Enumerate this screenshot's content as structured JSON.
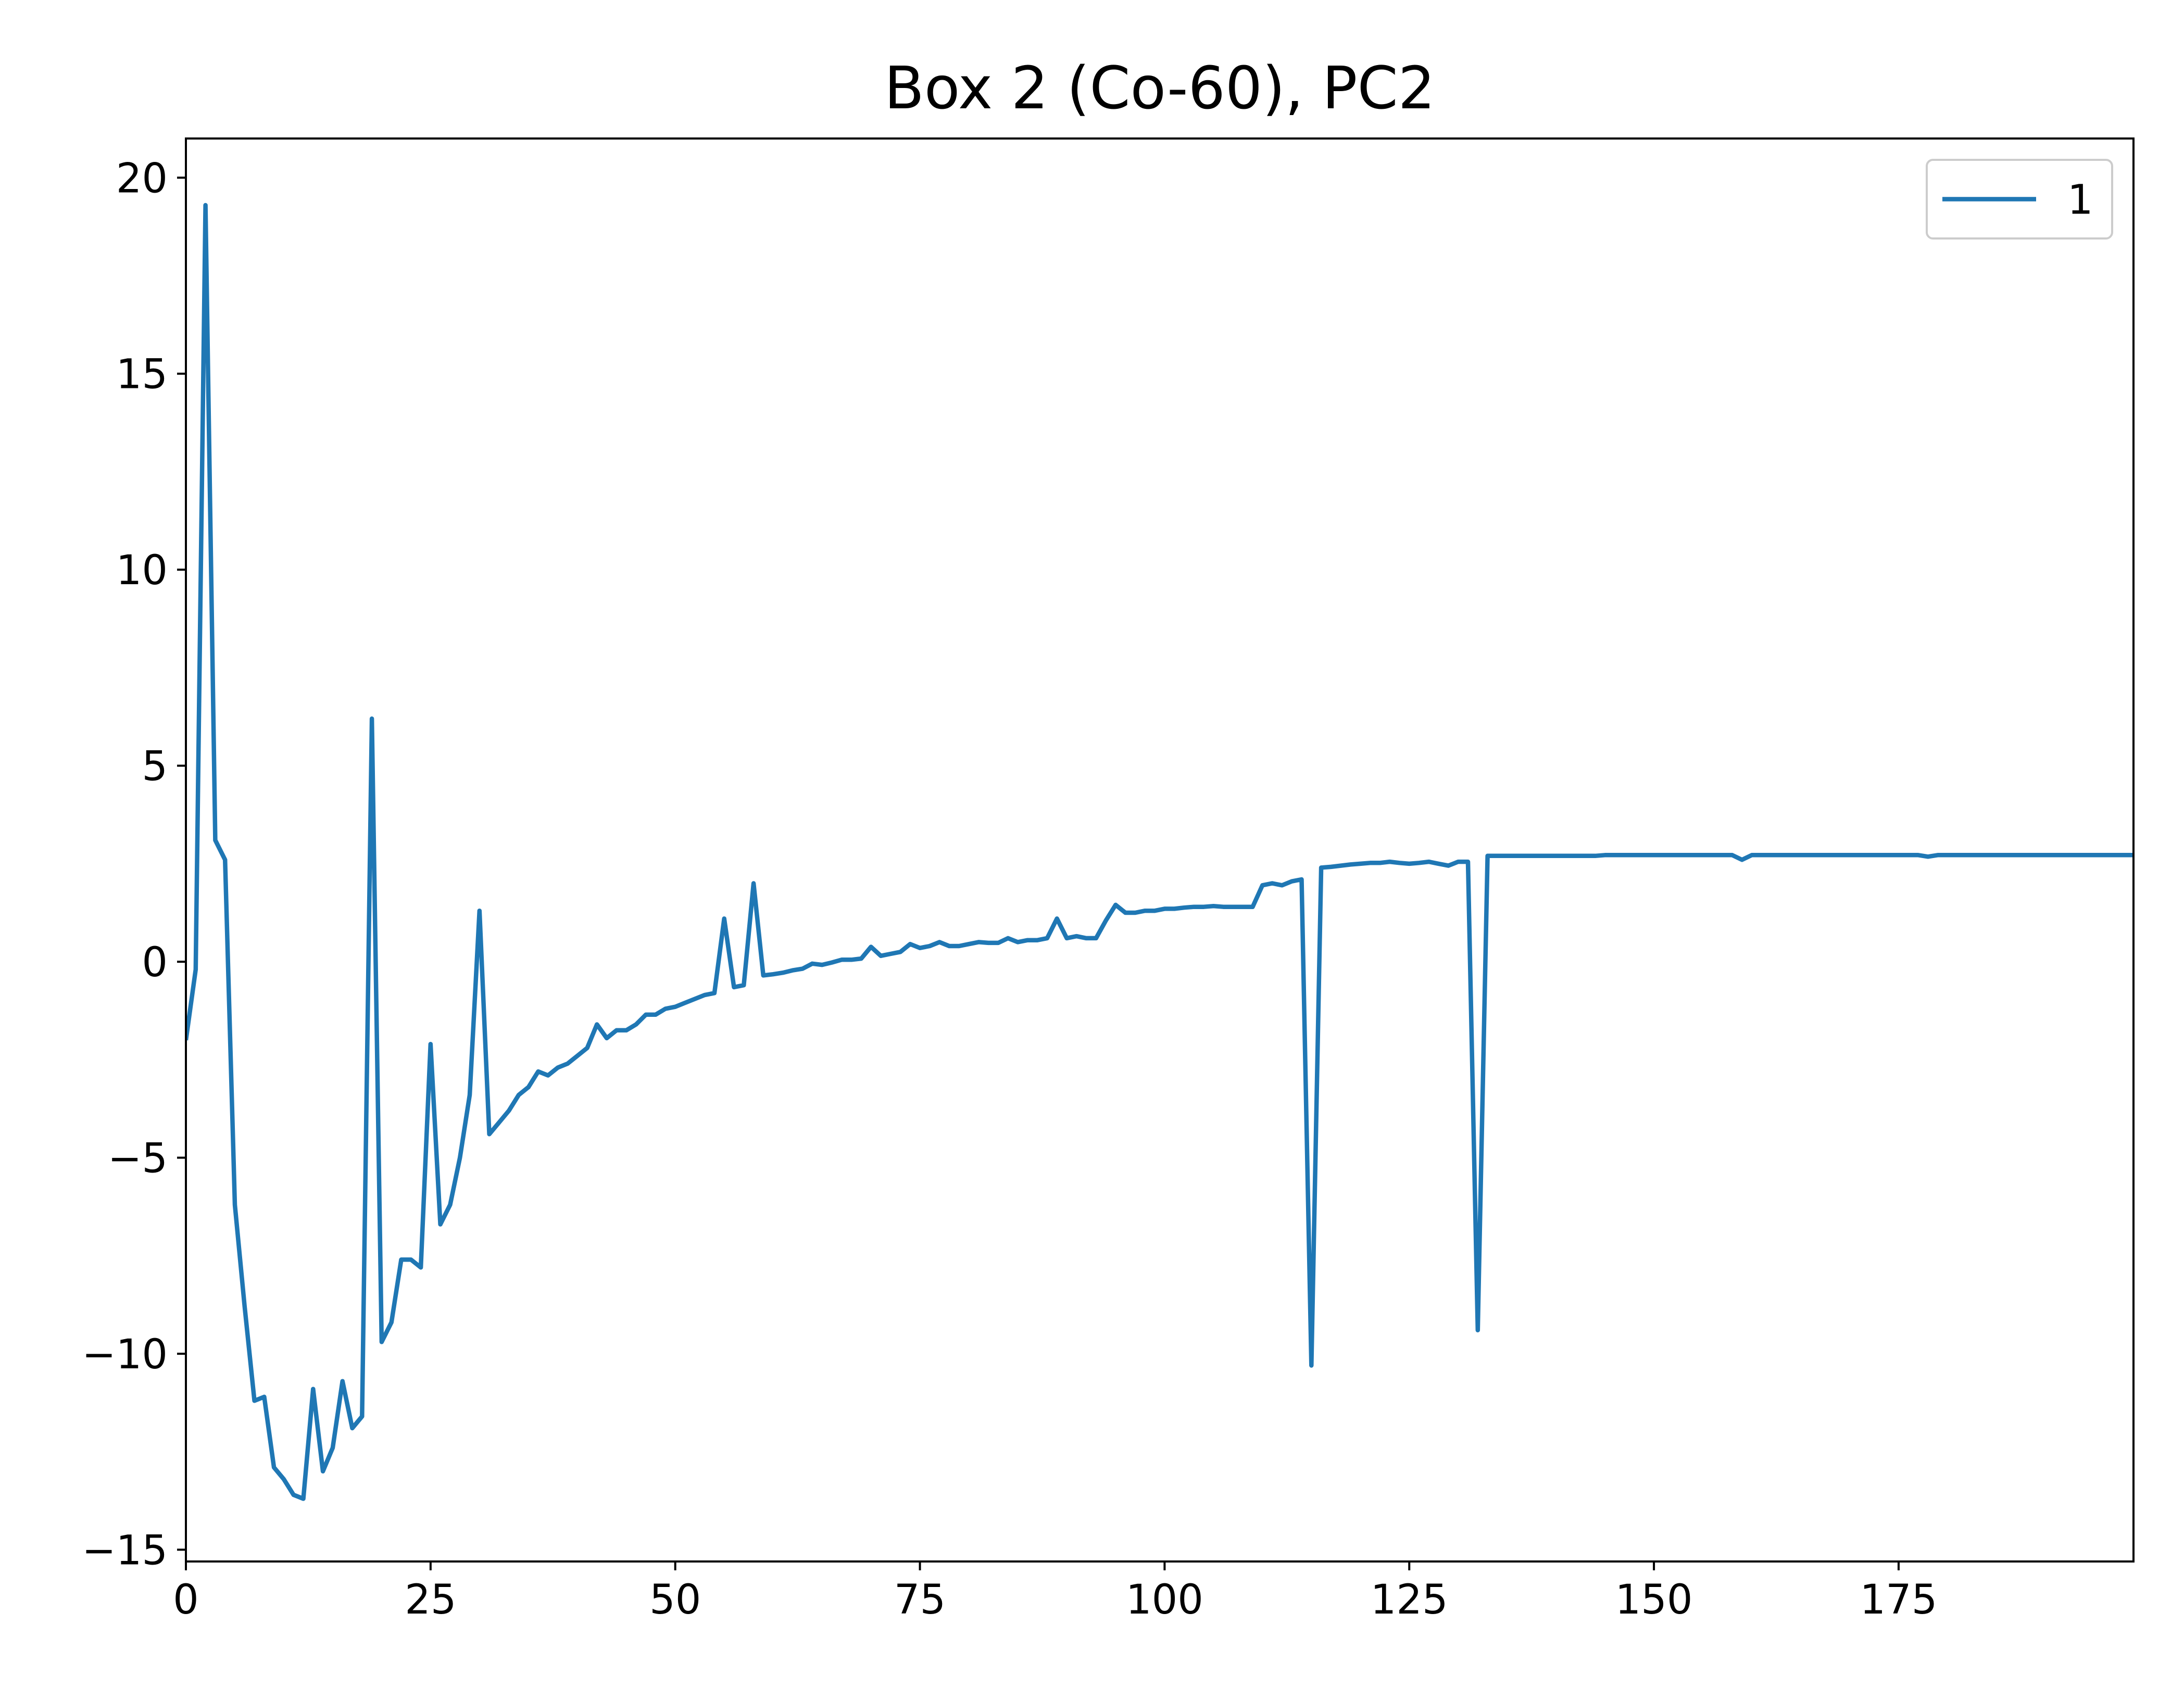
{
  "chart_data": {
    "type": "line",
    "title": "Box 2 (Co-60), PC2",
    "xlabel": "",
    "ylabel": "",
    "xlim": [
      0,
      199
    ],
    "ylim": [
      -15.3,
      21.0
    ],
    "xticks": [
      0,
      25,
      50,
      75,
      100,
      125,
      150,
      175
    ],
    "xtick_labels": [
      "0",
      "25",
      "50",
      "75",
      "100",
      "125",
      "150",
      "175"
    ],
    "yticks": [
      20,
      15,
      10,
      5,
      0,
      -5,
      -10,
      -15
    ],
    "ytick_labels": [
      "20",
      "15",
      "10",
      "5",
      "0",
      "−5",
      "−10",
      "−15"
    ],
    "grid": false,
    "legend_position": "top-right",
    "series": [
      {
        "name": "1",
        "color": "#1f77b4",
        "x": [
          0,
          1,
          2,
          3,
          4,
          5,
          6,
          7,
          8,
          9,
          10,
          11,
          12,
          13,
          14,
          15,
          16,
          17,
          18,
          19,
          20,
          21,
          22,
          23,
          24,
          25,
          26,
          27,
          28,
          29,
          30,
          31,
          32,
          33,
          34,
          35,
          36,
          37,
          38,
          39,
          40,
          41,
          42,
          43,
          44,
          45,
          46,
          47,
          48,
          49,
          50,
          51,
          52,
          53,
          54,
          55,
          56,
          57,
          58,
          59,
          60,
          61,
          62,
          63,
          64,
          65,
          66,
          67,
          68,
          69,
          70,
          71,
          72,
          73,
          74,
          75,
          76,
          77,
          78,
          79,
          80,
          81,
          82,
          83,
          84,
          85,
          86,
          87,
          88,
          89,
          90,
          91,
          92,
          93,
          94,
          95,
          96,
          97,
          98,
          99,
          100,
          101,
          102,
          103,
          104,
          105,
          106,
          107,
          108,
          109,
          110,
          111,
          112,
          113,
          114,
          115,
          116,
          117,
          118,
          119,
          120,
          121,
          122,
          123,
          124,
          125,
          126,
          127,
          128,
          129,
          130,
          131,
          132,
          133,
          134,
          135,
          136,
          137,
          138,
          139,
          140,
          141,
          142,
          143,
          144,
          145,
          146,
          147,
          148,
          149,
          150,
          151,
          152,
          153,
          154,
          155,
          156,
          157,
          158,
          159,
          160,
          161,
          162,
          163,
          164,
          165,
          166,
          167,
          168,
          169,
          170,
          171,
          172,
          173,
          174,
          175,
          176,
          177,
          178,
          179,
          180,
          181,
          182,
          183,
          184,
          185,
          186,
          187,
          188,
          189,
          190,
          191,
          192,
          193,
          194,
          195,
          196,
          197,
          198,
          199
        ],
        "values": [
          -2.0,
          -0.2,
          19.3,
          3.1,
          2.6,
          -6.2,
          -8.8,
          -11.2,
          -11.1,
          -12.9,
          -13.2,
          -13.6,
          -13.7,
          -10.9,
          -13.0,
          -12.4,
          -10.7,
          -11.9,
          -11.6,
          6.2,
          -9.7,
          -9.2,
          -7.6,
          -7.6,
          -7.8,
          -2.1,
          -6.7,
          -6.2,
          -5.0,
          -3.4,
          1.3,
          -4.4,
          -4.1,
          -3.8,
          -3.4,
          -3.2,
          -2.8,
          -2.9,
          -2.7,
          -2.6,
          -2.4,
          -2.2,
          -1.6,
          -1.95,
          -1.75,
          -1.75,
          -1.6,
          -1.35,
          -1.35,
          -1.2,
          -1.15,
          -1.05,
          -0.95,
          -0.85,
          -0.8,
          1.1,
          -0.65,
          -0.6,
          2.0,
          -0.35,
          -0.32,
          -0.28,
          -0.22,
          -0.18,
          -0.05,
          -0.08,
          -0.02,
          0.05,
          0.05,
          0.08,
          0.38,
          0.15,
          0.2,
          0.25,
          0.45,
          0.35,
          0.4,
          0.5,
          0.4,
          0.4,
          0.45,
          0.5,
          0.48,
          0.48,
          0.6,
          0.5,
          0.55,
          0.55,
          0.6,
          1.1,
          0.6,
          0.65,
          0.6,
          0.6,
          1.05,
          1.45,
          1.25,
          1.25,
          1.3,
          1.3,
          1.35,
          1.35,
          1.38,
          1.4,
          1.4,
          1.42,
          1.4,
          1.4,
          1.4,
          1.4,
          1.95,
          2.0,
          1.95,
          2.05,
          2.1,
          -10.3,
          2.4,
          2.42,
          2.45,
          2.48,
          2.5,
          2.52,
          2.52,
          2.55,
          2.52,
          2.5,
          2.52,
          2.55,
          2.5,
          2.45,
          2.55,
          2.55,
          -9.4,
          2.7,
          2.7,
          2.7,
          2.7,
          2.7,
          2.7,
          2.7,
          2.7,
          2.7,
          2.7,
          2.7,
          2.7,
          2.72,
          2.72,
          2.72,
          2.72,
          2.72,
          2.72,
          2.72,
          2.72,
          2.72,
          2.72,
          2.72,
          2.72,
          2.72,
          2.72,
          2.6,
          2.72,
          2.72,
          2.72,
          2.72,
          2.72,
          2.72,
          2.72,
          2.72,
          2.72,
          2.72,
          2.72,
          2.72,
          2.72,
          2.72,
          2.72,
          2.72,
          2.72,
          2.72,
          2.68,
          2.72,
          2.72,
          2.72,
          2.72,
          2.72,
          2.72,
          2.72,
          2.72,
          2.72,
          2.72,
          2.72,
          2.72,
          2.72,
          2.72,
          2.72,
          2.72,
          2.72,
          2.72,
          2.72,
          2.72,
          2.72
        ]
      }
    ]
  }
}
